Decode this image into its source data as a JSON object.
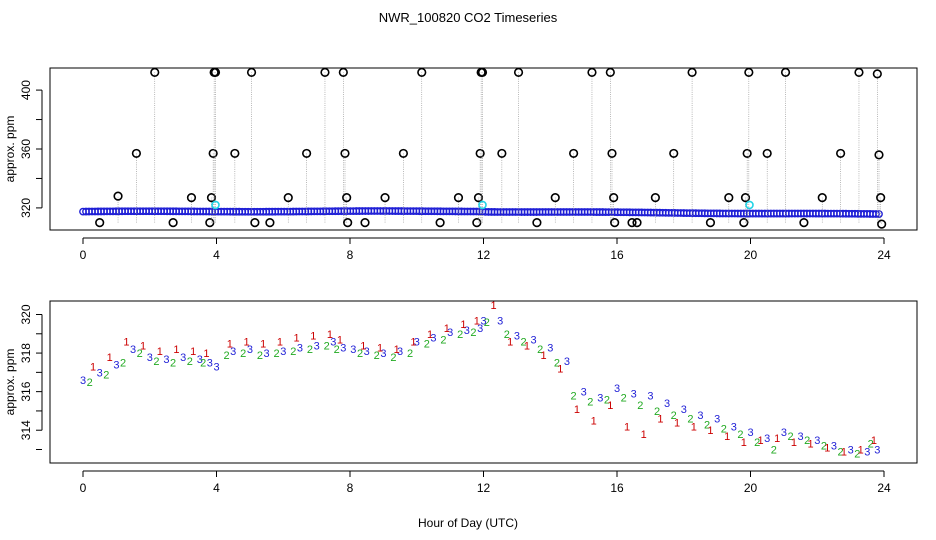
{
  "title": "NWR_100820  CO2 Timeseries",
  "xlabel": "Hour of Day (UTC)",
  "colors": {
    "black": "#000000",
    "blue": "#1f1fd6",
    "cyan": "#22d3e6",
    "red": "#cc0000",
    "green": "#22aa22"
  },
  "chart_data": [
    {
      "type": "scatter",
      "panel": "top",
      "ylabel": "approx. ppm",
      "xlim": [
        0,
        24
      ],
      "ylim": [
        305,
        415
      ],
      "xticks": [
        0,
        4,
        8,
        12,
        16,
        20,
        24
      ],
      "yticks": [
        320,
        360,
        400
      ],
      "series": [
        {
          "marker": "circle-black",
          "x": [
            0.5,
            1.05,
            1.6,
            2.15,
            2.7,
            3.25,
            3.8,
            3.85,
            3.9,
            3.93,
            3.97,
            4.55,
            5.05,
            5.15,
            5.6,
            6.15,
            6.7,
            7.25,
            7.8,
            7.85,
            7.9,
            7.93,
            8.45,
            9.05,
            9.6,
            10.15,
            10.7,
            11.25,
            11.8,
            11.85,
            11.9,
            11.93,
            11.97,
            12.55,
            13.05,
            13.6,
            14.15,
            14.7,
            15.25,
            15.8,
            15.85,
            15.9,
            15.93,
            16.45,
            16.6,
            17.15,
            17.7,
            18.25,
            18.8,
            19.35,
            19.8,
            19.85,
            19.9,
            19.95,
            20.5,
            21.05,
            21.6,
            22.15,
            22.7,
            23.25,
            23.8,
            23.85,
            23.9,
            23.93
          ],
          "y": [
            310,
            328,
            357,
            412,
            310,
            327,
            310,
            327,
            357,
            412,
            412,
            357,
            412,
            310,
            310,
            327,
            357,
            412,
            412,
            357,
            327,
            310,
            310,
            327,
            357,
            412,
            310,
            327,
            310,
            327,
            357,
            412,
            412,
            357,
            412,
            310,
            327,
            357,
            412,
            412,
            357,
            327,
            310,
            310,
            310,
            327,
            357,
            412,
            310,
            327,
            310,
            327,
            357,
            412,
            357,
            412,
            310,
            327,
            357,
            412,
            411,
            356,
            327,
            309
          ]
        },
        {
          "marker": "circle-cyan",
          "x": [
            3.97,
            11.97,
            19.97
          ],
          "y": [
            322,
            322,
            322
          ]
        }
      ]
    },
    {
      "type": "scatter",
      "panel": "bottom",
      "ylabel": "approx. ppm",
      "xlim": [
        0,
        24
      ],
      "ylim": [
        312.3,
        320.7
      ],
      "xticks": [
        0,
        4,
        8,
        12,
        16,
        20,
        24
      ],
      "yticks": [
        314,
        316,
        318,
        320
      ],
      "series": [
        {
          "name": "3",
          "marker": "3",
          "color": "#1f1fd6",
          "x": [
            0,
            0.5,
            1,
            1.5,
            2,
            2.5,
            3,
            3.5,
            3.8,
            4.0,
            4.5,
            5,
            5.5,
            6,
            6.5,
            7,
            7.5,
            7.8,
            8.1,
            8.5,
            9,
            9.5,
            10,
            10.5,
            11,
            11.5,
            11.9,
            12,
            12.5,
            13,
            13.5,
            14,
            14.5,
            15,
            15.5,
            16,
            16.5,
            17,
            17.5,
            18,
            18.5,
            19,
            19.5,
            20,
            20.5,
            21,
            21.5,
            22,
            22.5,
            23,
            23.5,
            23.8
          ],
          "y": [
            316.6,
            317.0,
            317.4,
            318.2,
            317.8,
            317.7,
            317.8,
            317.7,
            317.5,
            317.3,
            318.1,
            318.2,
            318.0,
            318.1,
            318.3,
            318.4,
            318.6,
            318.3,
            318.2,
            318.1,
            318.0,
            318.1,
            318.6,
            318.8,
            319.1,
            319.2,
            319.3,
            319.7,
            319.7,
            318.9,
            318.7,
            318.3,
            317.6,
            316.0,
            315.7,
            316.2,
            315.9,
            315.8,
            315.4,
            315.1,
            314.8,
            314.6,
            314.2,
            313.9,
            313.6,
            313.9,
            313.7,
            313.5,
            313.2,
            313.0,
            312.9,
            313.0
          ]
        },
        {
          "name": "2",
          "marker": "2",
          "color": "#22aa22",
          "x": [
            0.2,
            0.7,
            1.2,
            1.7,
            2.2,
            2.7,
            3.2,
            3.6,
            4.3,
            4.8,
            5.3,
            5.8,
            6.3,
            6.8,
            7.3,
            7.6,
            8.3,
            8.8,
            9.3,
            9.8,
            10.3,
            10.8,
            11.3,
            11.7,
            12.1,
            12.7,
            13.2,
            13.7,
            14.2,
            14.7,
            15.2,
            15.7,
            16.2,
            16.7,
            17.2,
            17.7,
            18.2,
            18.7,
            19.2,
            19.7,
            20.2,
            20.7,
            21.2,
            21.7,
            22.2,
            22.7,
            23.2,
            23.6
          ],
          "y": [
            316.5,
            316.9,
            317.5,
            318.0,
            317.6,
            317.5,
            317.6,
            317.5,
            317.9,
            318.0,
            317.9,
            318.0,
            318.1,
            318.2,
            318.4,
            318.2,
            318.0,
            317.9,
            317.8,
            318.0,
            318.5,
            318.7,
            319.0,
            319.1,
            319.6,
            319.0,
            318.6,
            318.2,
            317.5,
            315.8,
            315.5,
            315.6,
            315.7,
            315.3,
            315.0,
            314.8,
            314.6,
            314.3,
            314.1,
            313.8,
            313.4,
            313.0,
            313.7,
            313.5,
            313.2,
            312.9,
            312.8,
            313.3
          ]
        },
        {
          "name": "1",
          "marker": "1",
          "color": "#cc0000",
          "x": [
            0.3,
            0.8,
            1.3,
            1.8,
            2.3,
            2.8,
            3.3,
            3.7,
            4.4,
            4.9,
            5.4,
            5.9,
            6.4,
            6.9,
            7.4,
            7.7,
            8.4,
            8.9,
            9.4,
            9.9,
            10.4,
            10.9,
            11.4,
            11.8,
            12.3,
            12.8,
            13.3,
            13.8,
            14.3,
            14.8,
            15.3,
            15.8,
            16.3,
            16.8,
            17.3,
            17.8,
            18.3,
            18.8,
            19.3,
            19.8,
            20.3,
            20.8,
            21.3,
            21.8,
            22.3,
            22.8,
            23.3,
            23.7
          ],
          "y": [
            317.3,
            317.8,
            318.6,
            318.4,
            318.1,
            318.2,
            318.1,
            318.0,
            318.5,
            318.6,
            318.5,
            318.6,
            318.8,
            318.9,
            319.0,
            318.7,
            318.4,
            318.3,
            318.2,
            318.6,
            319.0,
            319.3,
            319.5,
            319.7,
            320.5,
            318.6,
            318.4,
            317.9,
            317.2,
            315.1,
            314.5,
            315.3,
            314.2,
            313.8,
            314.6,
            314.4,
            314.2,
            314.0,
            313.7,
            313.4,
            313.5,
            313.6,
            313.4,
            313.3,
            313.1,
            312.9,
            313.0,
            313.5
          ]
        }
      ]
    }
  ]
}
